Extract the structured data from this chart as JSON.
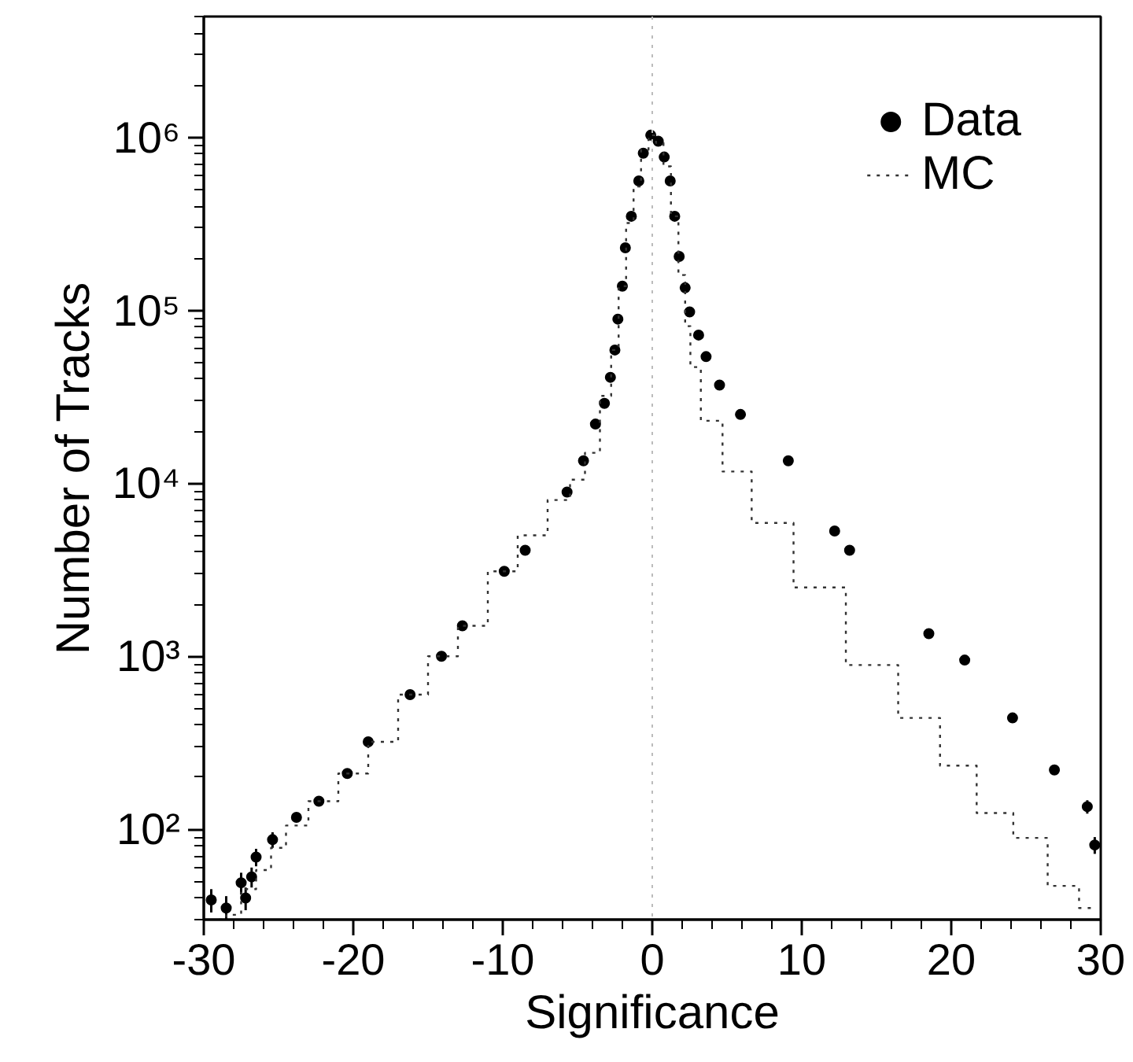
{
  "chart_data": {
    "type": "scatter",
    "xlabel": "Significance",
    "ylabel": "Number of Tracks",
    "log": "y",
    "xlim": [
      -30,
      30
    ],
    "ylim": [
      30,
      5000000
    ],
    "xticks": [
      {
        "value": -30,
        "label": "-30"
      },
      {
        "value": -20,
        "label": "-20"
      },
      {
        "value": -10,
        "label": "-10"
      },
      0,
      10,
      20,
      30
    ],
    "yticks": [
      {
        "value": 100,
        "label": "10²"
      },
      {
        "value": 1000,
        "label": "10³"
      },
      {
        "value": 10000,
        "label": "10⁴"
      },
      {
        "value": 100000,
        "label": "10⁵"
      },
      {
        "value": 1000000,
        "label": "10⁶"
      }
    ],
    "legend": "top right",
    "grid": false,
    "ref_lines": [
      {
        "axis": "x",
        "value": 0,
        "color": "#bbbbbb",
        "line_style": "dotted"
      }
    ],
    "series": [
      {
        "name": "Data",
        "marker": "circle",
        "color": "#000000",
        "x": [
          -29.5,
          -28.5,
          -27.5,
          -27.2,
          -26.8,
          -26.5,
          -25.4,
          -23.8,
          -22.3,
          -20.4,
          -19,
          -16.2,
          -14.1,
          -12.7,
          -9.9,
          -8.5,
          -5.7,
          -4.6,
          -3.8,
          -3.2,
          -2.8,
          -2.5,
          -2.3,
          -2.0,
          -1.8,
          -1.4,
          -0.9,
          -0.6,
          -0.1,
          0.4,
          0.8,
          1.2,
          1.5,
          1.8,
          2.2,
          2.5,
          3.1,
          3.6,
          4.5,
          5.9,
          9.1,
          12.2,
          13.2,
          18.5,
          20.9,
          24.1,
          26.9,
          29.1,
          29.6
        ],
        "values": [
          39,
          35,
          49,
          40,
          53,
          69,
          87,
          117,
          145,
          210,
          320,
          600,
          1000,
          1500,
          3100,
          4100,
          8900,
          13500,
          22000,
          29000,
          41000,
          59000,
          89000,
          138000,
          230000,
          350000,
          560000,
          810000,
          1030000,
          950000,
          770000,
          560000,
          350000,
          205000,
          135000,
          98000,
          72000,
          54000,
          37000,
          25000,
          13500,
          5300,
          4100,
          1350,
          950,
          440,
          220,
          135,
          81
        ],
        "errors": [
          6,
          6,
          7,
          6,
          7,
          8,
          9,
          null,
          null,
          null,
          null,
          null,
          null,
          null,
          null,
          null,
          null,
          null,
          null,
          null,
          null,
          null,
          null,
          null,
          null,
          null,
          null,
          null,
          null,
          null,
          null,
          null,
          null,
          null,
          null,
          null,
          null,
          null,
          null,
          null,
          null,
          null,
          null,
          null,
          null,
          null,
          null,
          12,
          9
        ]
      },
      {
        "name": "MC",
        "type": "step",
        "line_style": "dotted",
        "color": "#333333",
        "x": [
          -29,
          -28,
          -27,
          -26,
          -25,
          -24,
          -22,
          -20,
          -18,
          -16,
          -14,
          -12,
          -10,
          -8,
          -6,
          -5,
          -4,
          -3,
          -2.5,
          -2,
          -1.5,
          -1,
          -0.5,
          0,
          0.5,
          1,
          1.5,
          2,
          2.4,
          2.7,
          3.8,
          5.6,
          7.7,
          11.2,
          14.7,
          18.2,
          20.3,
          23.1,
          25.2,
          27.7,
          29.4
        ],
        "values": [
          30,
          32,
          45,
          58,
          78,
          105,
          145,
          210,
          320,
          600,
          1000,
          1500,
          3100,
          5000,
          8000,
          10500,
          15000,
          32000,
          59000,
          138000,
          320000,
          520000,
          850000,
          1030000,
          930000,
          680000,
          350000,
          160000,
          81000,
          47000,
          23000,
          11700,
          5900,
          2500,
          890,
          440,
          233,
          124,
          89,
          47,
          35
        ]
      }
    ]
  }
}
